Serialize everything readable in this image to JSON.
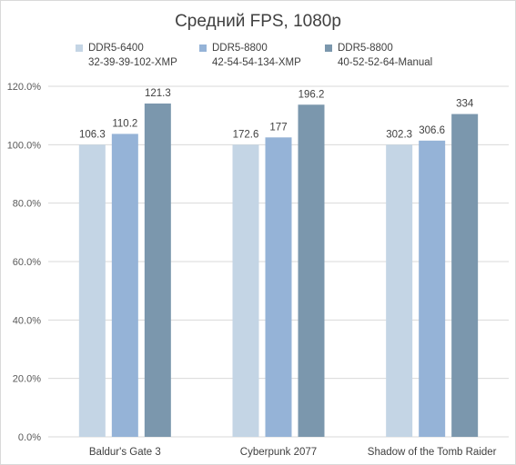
{
  "chart_data": {
    "type": "bar",
    "title": "Средний FPS, 1080p",
    "categories": [
      "Baldur's Gate 3",
      "Cyberpunk 2077",
      "Shadow of the Tomb Raider"
    ],
    "series": [
      {
        "name": "DDR5-6400",
        "name_line2": "32-39-39-102-XMP",
        "color": "#c4d5e5",
        "values": [
          100.0,
          100.0,
          100.0
        ],
        "labels": [
          "106.3",
          "172.6",
          "302.3"
        ]
      },
      {
        "name": "DDR5-8800",
        "name_line2": "42-54-54-134-XMP",
        "color": "#95b3d7",
        "values": [
          103.7,
          102.5,
          101.4
        ],
        "labels": [
          "110.2",
          "177",
          "306.6"
        ]
      },
      {
        "name": "DDR5-8800",
        "name_line2": "40-52-52-64-Manual",
        "color": "#7b97ad",
        "values": [
          114.1,
          113.7,
          110.5
        ],
        "labels": [
          "121.3",
          "196.2",
          "334"
        ]
      }
    ],
    "yticks": [
      "0.0%",
      "20.0%",
      "40.0%",
      "60.0%",
      "80.0%",
      "100.0%",
      "120.0%"
    ],
    "ylim": [
      0,
      120
    ],
    "grid": true,
    "legend": "top"
  }
}
